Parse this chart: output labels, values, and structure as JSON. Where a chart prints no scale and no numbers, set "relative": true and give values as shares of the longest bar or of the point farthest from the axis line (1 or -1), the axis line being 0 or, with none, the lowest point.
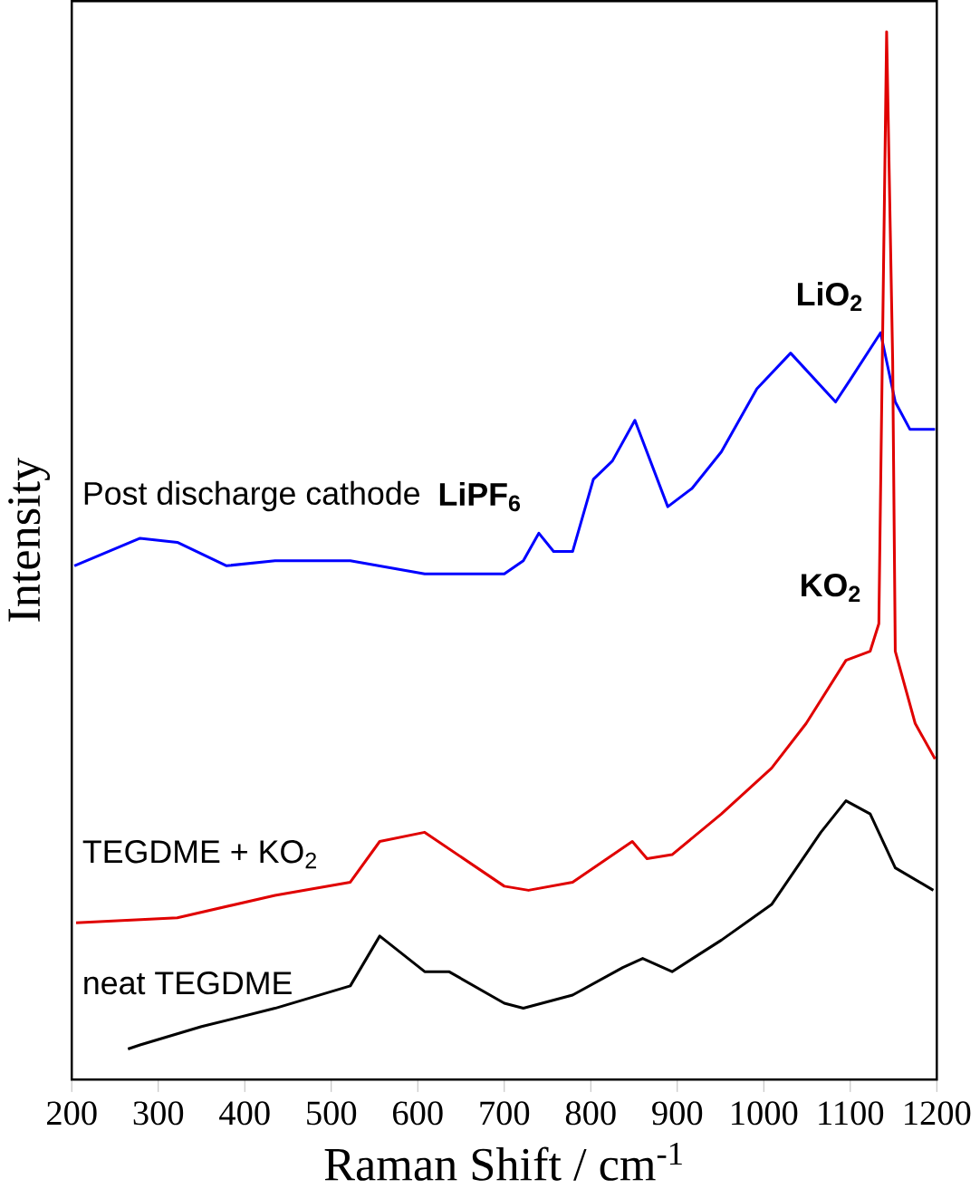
{
  "chart_data": {
    "type": "line",
    "xlabel": "Raman Shift / cm$^{-1}$",
    "ylabel": "Intensity",
    "relative": true,
    "xlim": [
      200,
      1200
    ],
    "xticks": [
      200,
      300,
      400,
      500,
      600,
      700,
      800,
      900,
      1000,
      1100,
      1200
    ],
    "series": [
      {
        "name": "Post discharge cathode",
        "color": "#0000ff",
        "x": [
          203,
          279,
          322,
          379,
          435,
          522,
          608,
          700,
          722,
          740,
          757,
          779,
          803,
          825,
          851,
          889,
          917,
          951,
          992,
          1031,
          1083,
          1100,
          1135,
          1152,
          1169,
          1198
        ],
        "values": [
          0.475,
          0.502,
          0.498,
          0.475,
          0.48,
          0.48,
          0.467,
          0.467,
          0.48,
          0.507,
          0.489,
          0.489,
          0.56,
          0.578,
          0.618,
          0.533,
          0.551,
          0.587,
          0.649,
          0.684,
          0.636,
          0.658,
          0.704,
          0.636,
          0.609,
          0.609
        ]
      },
      {
        "name": "TEGDME + KO$_{2}$",
        "color": "#e00000",
        "x": [
          205,
          322,
          435,
          522,
          556,
          608,
          700,
          728,
          779,
          848,
          865,
          894,
          951,
          1009,
          1049,
          1095,
          1123,
          1133,
          1137,
          1142,
          1149,
          1152,
          1175,
          1198
        ],
        "values": [
          0.124,
          0.129,
          0.151,
          0.164,
          0.204,
          0.213,
          0.16,
          0.156,
          0.164,
          0.204,
          0.187,
          0.191,
          0.231,
          0.276,
          0.32,
          0.382,
          0.391,
          0.418,
          0.676,
          1.0,
          0.676,
          0.391,
          0.32,
          0.285
        ]
      },
      {
        "name": "neat TEGDME",
        "color": "#000000",
        "x": [
          265,
          279,
          350,
          435,
          522,
          556,
          608,
          636,
          700,
          722,
          779,
          837,
          860,
          894,
          951,
          1009,
          1066,
          1095,
          1123,
          1152,
          1196
        ],
        "values": [
          0.0,
          0.004,
          0.022,
          0.04,
          0.062,
          0.111,
          0.076,
          0.076,
          0.045,
          0.04,
          0.053,
          0.08,
          0.089,
          0.076,
          0.107,
          0.142,
          0.213,
          0.244,
          0.231,
          0.178,
          0.156
        ]
      }
    ],
    "annotations": [
      {
        "text": "LiO$_{2}$",
        "x": 1135,
        "y": 0.704
      },
      {
        "text": "KO$_{2}$",
        "x": 1133,
        "y": 0.418
      },
      {
        "text": "LiPF$_{6}$",
        "x": 740,
        "y": 0.507
      }
    ]
  }
}
